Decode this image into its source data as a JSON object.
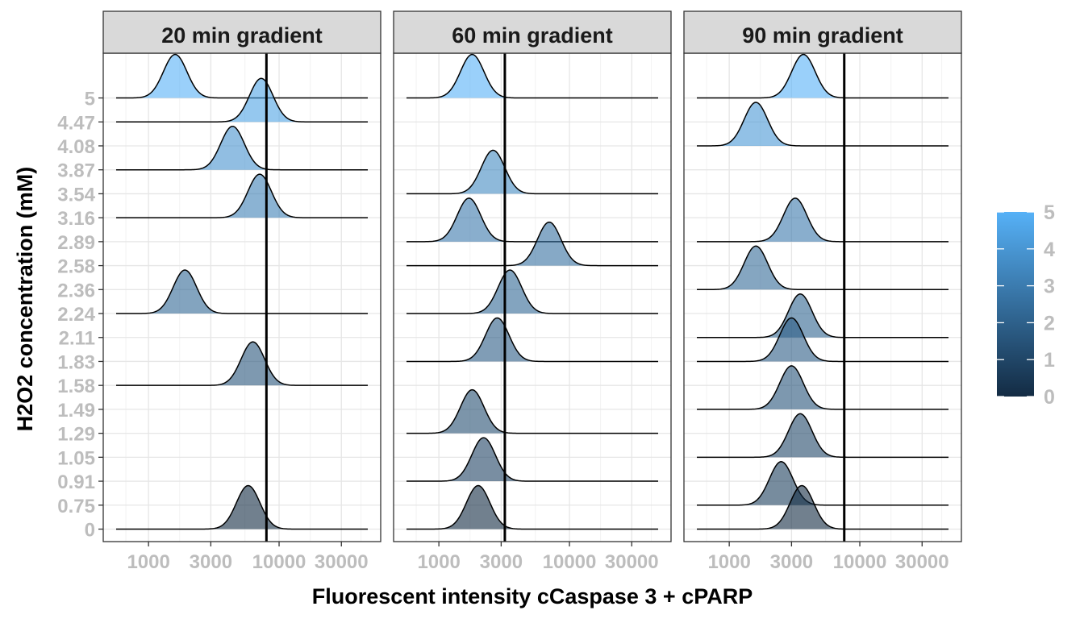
{
  "chart_data": {
    "type": "ridgeline",
    "x_scale": "log10",
    "x_range": [
      450,
      60000
    ],
    "x_ticks": [
      1000,
      3000,
      10000,
      30000
    ],
    "x_tick_labels": [
      "1000",
      "3000",
      "10000",
      "30000"
    ],
    "xlabel": "Fluorescent intensity cCaspase 3 + cPARP",
    "ylabel": "H2O2 concentration (mM)",
    "y_levels": [
      "0",
      "0.75",
      "0.91",
      "1.05",
      "1.29",
      "1.49",
      "1.58",
      "1.83",
      "2.11",
      "2.24",
      "2.36",
      "2.58",
      "2.89",
      "3.16",
      "3.54",
      "3.87",
      "4.08",
      "4.47",
      "5"
    ],
    "color_legend": {
      "min": 0,
      "max": 5,
      "ticks": [
        "0",
        "1",
        "2",
        "3",
        "4",
        "5"
      ],
      "low_color": "#132B43",
      "high_color": "#56B1F7"
    },
    "grid": true,
    "facets": [
      {
        "strip": "20 min gradient",
        "reference_x": 8000,
        "ridges": [
          {
            "level": "0",
            "value": 0,
            "peak_x": 5800
          },
          {
            "level": "1.58",
            "value": 1.58,
            "peak_x": 6300
          },
          {
            "level": "2.24",
            "value": 2.24,
            "peak_x": 1900
          },
          {
            "level": "3.16",
            "value": 3.16,
            "peak_x": 7100
          },
          {
            "level": "3.87",
            "value": 3.87,
            "peak_x": 4400
          },
          {
            "level": "4.47",
            "value": 4.47,
            "peak_x": 7300
          },
          {
            "level": "5",
            "value": 5,
            "peak_x": 1600
          }
        ]
      },
      {
        "strip": "60 min gradient",
        "reference_x": 3200,
        "ridges": [
          {
            "level": "0",
            "value": 0,
            "peak_x": 2000
          },
          {
            "level": "0.91",
            "value": 0.91,
            "peak_x": 2200
          },
          {
            "level": "1.29",
            "value": 1.29,
            "peak_x": 1800
          },
          {
            "level": "1.83",
            "value": 1.83,
            "peak_x": 2800
          },
          {
            "level": "2.24",
            "value": 2.24,
            "peak_x": 3500
          },
          {
            "level": "2.58",
            "value": 2.58,
            "peak_x": 7000
          },
          {
            "level": "2.89",
            "value": 2.89,
            "peak_x": 1700
          },
          {
            "level": "3.54",
            "value": 3.54,
            "peak_x": 2600
          },
          {
            "level": "5",
            "value": 5,
            "peak_x": 1800
          }
        ]
      },
      {
        "strip": "90 min gradient",
        "reference_x": 7600,
        "ridges": [
          {
            "level": "0",
            "value": 0,
            "peak_x": 3600
          },
          {
            "level": "0.75",
            "value": 0.75,
            "peak_x": 2500
          },
          {
            "level": "1.05",
            "value": 1.05,
            "peak_x": 3500
          },
          {
            "level": "1.49",
            "value": 1.49,
            "peak_x": 3000
          },
          {
            "level": "1.83",
            "value": 1.83,
            "peak_x": 3000
          },
          {
            "level": "2.11",
            "value": 2.11,
            "peak_x": 3500
          },
          {
            "level": "2.36",
            "value": 2.36,
            "peak_x": 1600
          },
          {
            "level": "2.89",
            "value": 2.89,
            "peak_x": 3200
          },
          {
            "level": "4.08",
            "value": 4.08,
            "peak_x": 1600
          },
          {
            "level": "5",
            "value": 5,
            "peak_x": 3700
          }
        ]
      }
    ]
  }
}
